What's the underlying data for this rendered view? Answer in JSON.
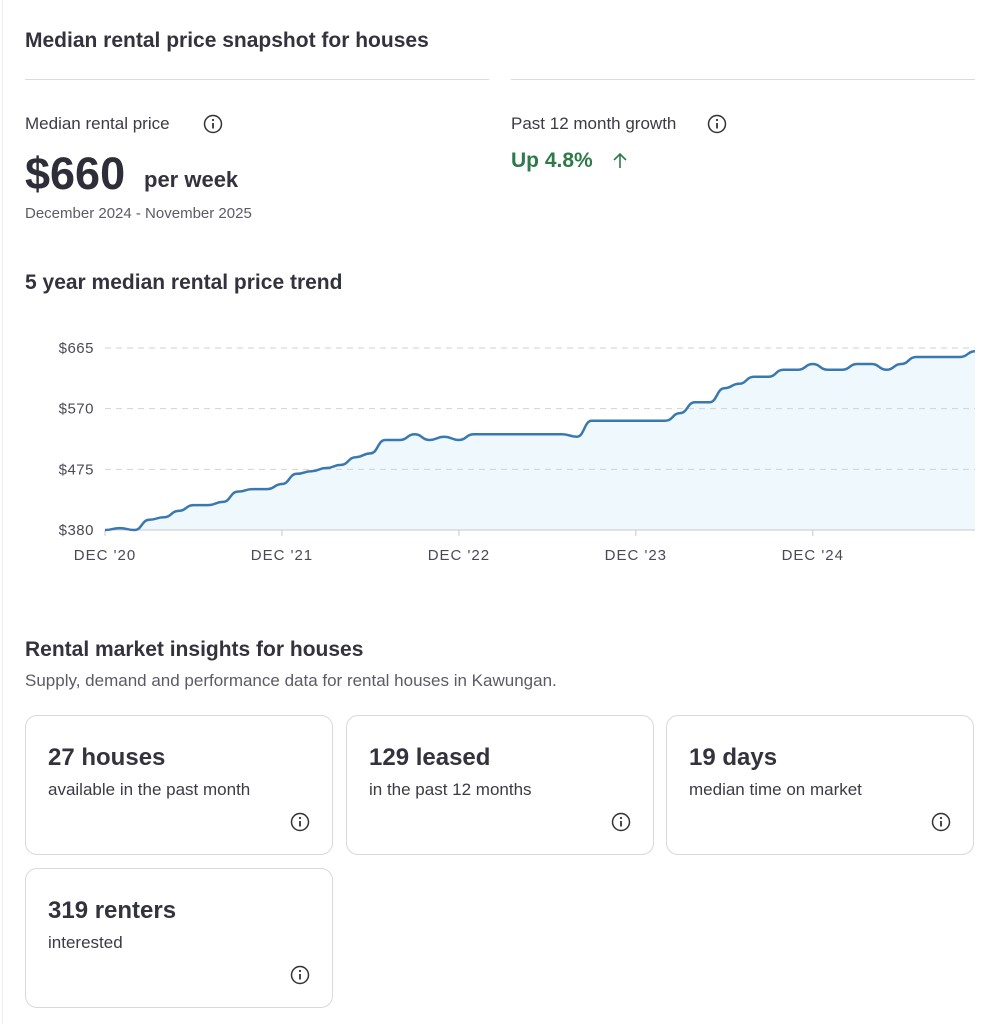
{
  "header": {
    "title": "Median rental price snapshot for houses"
  },
  "median": {
    "label": "Median rental price",
    "value": "$660",
    "unit": "per week",
    "period": "December 2024 - November 2025"
  },
  "growth": {
    "label": "Past 12 month growth",
    "value": "Up 4.8%"
  },
  "chart_data": {
    "type": "line",
    "title": "5 year median rental price trend",
    "x": [
      "2020-12",
      "2021-01",
      "2021-02",
      "2021-03",
      "2021-04",
      "2021-05",
      "2021-06",
      "2021-07",
      "2021-08",
      "2021-09",
      "2021-10",
      "2021-11",
      "2021-12",
      "2022-01",
      "2022-02",
      "2022-03",
      "2022-04",
      "2022-05",
      "2022-06",
      "2022-07",
      "2022-08",
      "2022-09",
      "2022-10",
      "2022-11",
      "2022-12",
      "2023-01",
      "2023-02",
      "2023-03",
      "2023-04",
      "2023-05",
      "2023-06",
      "2023-07",
      "2023-08",
      "2023-09",
      "2023-10",
      "2023-11",
      "2023-12",
      "2024-01",
      "2024-02",
      "2024-03",
      "2024-04",
      "2024-05",
      "2024-06",
      "2024-07",
      "2024-08",
      "2024-09",
      "2024-10",
      "2024-11",
      "2024-12",
      "2025-01",
      "2025-02",
      "2025-03",
      "2025-04",
      "2025-05",
      "2025-06",
      "2025-07",
      "2025-08",
      "2025-09",
      "2025-10",
      "2025-11"
    ],
    "series": [
      {
        "color": "#3a78b0",
        "area_color": "#eef8fd",
        "values": [
          380,
          383,
          380,
          396,
          400,
          410,
          419,
          419,
          424,
          440,
          444,
          444,
          452,
          468,
          472,
          477,
          482,
          494,
          500,
          521,
          521,
          530,
          521,
          526,
          521,
          530,
          530,
          530,
          530,
          530,
          530,
          530,
          526,
          551,
          551,
          551,
          551,
          551,
          551,
          563,
          580,
          580,
          602,
          609,
          620,
          620,
          631,
          631,
          640,
          631,
          631,
          640,
          640,
          631,
          640,
          651,
          651,
          651,
          651,
          660
        ]
      }
    ],
    "xlim": [
      "2020-12",
      "2025-11"
    ],
    "xticks": [
      {
        "value": "2020-12",
        "label": "DEC '20"
      },
      {
        "value": "2021-12",
        "label": "DEC '21"
      },
      {
        "value": "2022-12",
        "label": "DEC '22"
      },
      {
        "value": "2023-12",
        "label": "DEC '23"
      },
      {
        "value": "2024-12",
        "label": "DEC '24"
      }
    ],
    "ylim": [
      380,
      665
    ],
    "yticks": [
      {
        "value": 380,
        "label": "$380"
      },
      {
        "value": 475,
        "label": "$475"
      },
      {
        "value": 570,
        "label": "$570"
      },
      {
        "value": 665,
        "label": "$665"
      }
    ],
    "grid": true
  },
  "insights": {
    "title": "Rental market insights for houses",
    "subtitle": "Supply, demand and performance data for rental houses in Kawungan.",
    "cards": [
      {
        "value": "27 houses",
        "description": "available in the past month"
      },
      {
        "value": "129 leased",
        "description": "in the past 12 months"
      },
      {
        "value": "19 days",
        "description": "median time on market"
      },
      {
        "value": "319 renters",
        "description": "interested"
      }
    ]
  }
}
